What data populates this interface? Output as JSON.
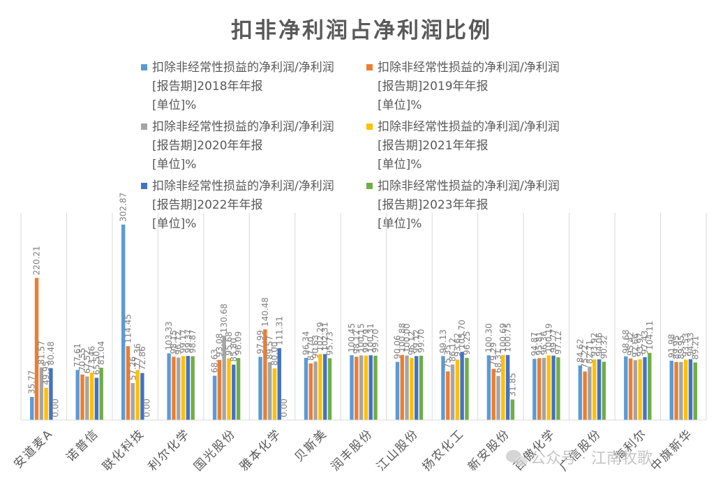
{
  "chart_data": {
    "type": "bar",
    "title": "扣非净利润占净利润比例",
    "xlabel": "",
    "ylabel": "",
    "ylim": [
      0,
      320
    ],
    "grid": "vertical-category-separators",
    "legend_placement": "top",
    "watermark": "公众号 · 江南牧歌",
    "categories": [
      "安道麦A",
      "诺普信",
      "联化科技",
      "利尔化学",
      "国光股份",
      "雅本化学",
      "贝斯美",
      "润丰股份",
      "江山股份",
      "扬农化工",
      "新安股份",
      "百傲化学",
      "广信股份",
      "海利尔",
      "中旗新华"
    ],
    "series": [
      {
        "name": "扣除非经常性损益的净利润/净利润\n[报告期]2018年年报\n[单位]%",
        "color": "#5b9bd5",
        "values": [
          35.77,
          77.61,
          302.87,
          103.33,
          68.63,
          97.99,
          96.34,
          100.45,
          90.06,
          99.13,
          100.3,
          94.87,
          84.62,
          98.68,
          91.98
        ]
      },
      {
        "name": "扣除非经常性损益的净利润/净利润\n[报告期]2019年年报\n[单位]%",
        "color": "#ed7d31",
        "values": [
          220.21,
          70.55,
          114.45,
          98.15,
          93.08,
          140.48,
          87.7,
          98.12,
          100.88,
          75.35,
          79.29,
          95.81,
          75.22,
          95.42,
          89.95
        ]
      },
      {
        "name": "扣除非经常性损益的净利润/净利润\n[报告期]2020年年报\n[单位]%",
        "color": "#a5a5a5",
        "values": [
          81.57,
          67.52,
          57.26,
          96.72,
          130.68,
          89.57,
          90.63,
          100.15,
          100.0,
          86.12,
          68.31,
          96.36,
          82.71,
          92.66,
          89.95
        ]
      },
      {
        "name": "扣除非经常性损益的净利润/净利润\n[报告期]2021年年报\n[单位]%",
        "color": "#ffc000",
        "values": [
          49.95,
          73.46,
          77.36,
          99.17,
          95.68,
          80.0,
          102.29,
          99.79,
          96.12,
          93.62,
          100.69,
          100.19,
          93.92,
          93.97,
          93.53
        ]
      },
      {
        "name": "扣除非经常性损益的净利润/净利润\n[报告期]2022年年报\n[单位]%",
        "color": "#4472c4",
        "values": [
          80.48,
          65.5,
          72.86,
          99.37,
          85.8,
          111.31,
          102.31,
          100.31,
          99.12,
          105.7,
          100.75,
          99.77,
          94.06,
          97.43,
          94.33
        ]
      },
      {
        "name": "扣除非经常性损益的净利润/净利润\n[报告期]2023年年报\n[单位]%",
        "color": "#70ad47",
        "values": [
          0.0,
          81.04,
          0.0,
          98.87,
          96.09,
          0.0,
          95.73,
          99.7,
          99.7,
          96.25,
          31.85,
          97.12,
          90.32,
          104.11,
          89.21
        ]
      }
    ]
  }
}
